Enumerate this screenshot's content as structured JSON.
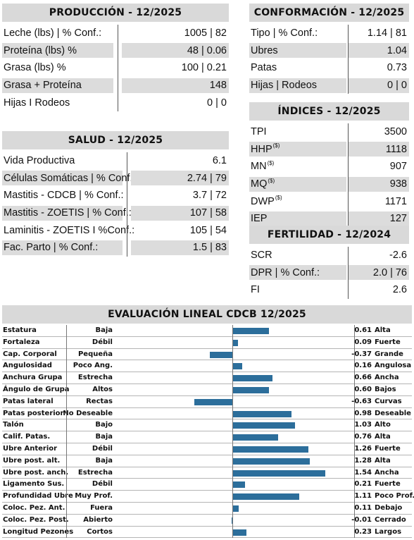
{
  "produccion": {
    "title": "PRODUCCIÓN - 12/2025",
    "rows": [
      {
        "label": "Leche (lbs) | % Conf.:",
        "value": "1005 | 82"
      },
      {
        "label": "Proteína (lbs) %",
        "value": "48 | 0.06"
      },
      {
        "label": "Grasa (lbs) %",
        "value": "100 | 0.21"
      },
      {
        "label": "Grasa + Proteína",
        "value": "148"
      },
      {
        "label": "Hijas I Rodeos",
        "value": "0 | 0"
      }
    ]
  },
  "salud": {
    "title": "SALUD - 12/2025",
    "rows": [
      {
        "label": "Vida Productiva",
        "value": "6.1"
      },
      {
        "label": "Células Somáticas | % Conf.:",
        "value": "2.74 | 79"
      },
      {
        "label": "Mastitis - CDCB | % Conf.:",
        "value": "3.7 | 72"
      },
      {
        "label": "Mastitis - ZOETIS | % Conf.:",
        "value": "107 | 58"
      },
      {
        "label": "Laminitis - ZOETIS I %Conf.:",
        "value": "105  | 54"
      },
      {
        "label": "Fac. Parto | % Conf.:",
        "value": "1.5  | 83"
      }
    ]
  },
  "conformacion": {
    "title": "CONFORMACIÓN - 12/2025",
    "rows": [
      {
        "label": "Tipo | % Conf.:",
        "value": "1.14 | 81"
      },
      {
        "label": "Ubres",
        "value": "1.04"
      },
      {
        "label": "Patas",
        "value": "0.73"
      },
      {
        "label": "Hijas | Rodeos",
        "value": "0 | 0"
      }
    ]
  },
  "indices": {
    "title": "ÍNDICES - 12/2025",
    "rows": [
      {
        "label": "TPI",
        "sup": "",
        "value": "3500"
      },
      {
        "label": "HHP",
        "sup": "($)",
        "value": "1118"
      },
      {
        "label": "MN",
        "sup": "($)",
        "value": "907"
      },
      {
        "label": "MQ",
        "sup": "($)",
        "value": "938"
      },
      {
        "label": "DWP",
        "sup": "($)",
        "value": "1171"
      },
      {
        "label": "IEP",
        "sup": "",
        "value": "127"
      }
    ]
  },
  "fertilidad": {
    "title": "FERTILIDAD - 12/2024",
    "rows": [
      {
        "label": "SCR",
        "value": "-2.6"
      },
      {
        "label": "DPR | % Conf.:",
        "value": "2.0 | 76"
      },
      {
        "label": "FI",
        "value": "2.6"
      }
    ]
  },
  "lineal": {
    "title": "EVALUACIÓN LINEAL CDCB 12/2025",
    "bar_color": "#2c6e9b",
    "traits": [
      {
        "trait": "Estatura",
        "low": "Baja",
        "value": 0.61,
        "value_text": "0.61",
        "high": "Alta"
      },
      {
        "trait": "Fortaleza",
        "low": "Débil",
        "value": 0.09,
        "value_text": "0.09",
        "high": "Fuerte"
      },
      {
        "trait": "Cap. Corporal",
        "low": "Pequeña",
        "value": -0.37,
        "value_text": "-0.37",
        "high": "Grande"
      },
      {
        "trait": "Angulosidad",
        "low": "Poco Ang.",
        "value": 0.16,
        "value_text": "0.16",
        "high": "Angulosa"
      },
      {
        "trait": "Anchura Grupa",
        "low": "Estrecha",
        "value": 0.66,
        "value_text": "0.66",
        "high": "Ancha"
      },
      {
        "trait": "Ángulo de Grupa",
        "low": "Altos",
        "value": 0.6,
        "value_text": "0.60",
        "high": "Bajos"
      },
      {
        "trait": "Patas lateral",
        "low": "Rectas",
        "value": -0.63,
        "value_text": "-0.63",
        "high": "Curvas"
      },
      {
        "trait": "Patas posterior",
        "low": "No Deseable",
        "value": 0.98,
        "value_text": "0.98",
        "high": "Deseable"
      },
      {
        "trait": "Talón",
        "low": "Bajo",
        "value": 1.03,
        "value_text": "1.03",
        "high": "Alto"
      },
      {
        "trait": "Calif. Patas.",
        "low": "Baja",
        "value": 0.76,
        "value_text": "0.76",
        "high": "Alta"
      },
      {
        "trait": "Ubre Anterior",
        "low": "Débil",
        "value": 1.26,
        "value_text": "1.26",
        "high": "Fuerte"
      },
      {
        "trait": "Ubre post. alt.",
        "low": "Baja",
        "value": 1.28,
        "value_text": "1.28",
        "high": "Alta"
      },
      {
        "trait": "Ubre post. anch.",
        "low": "Estrecha",
        "value": 1.54,
        "value_text": "1.54",
        "high": "Ancha"
      },
      {
        "trait": "Ligamento Sus.",
        "low": "Débil",
        "value": 0.21,
        "value_text": "0.21",
        "high": "Fuerte"
      },
      {
        "trait": "Profundidad Ubre",
        "low": "Muy Prof.",
        "value": 1.11,
        "value_text": "1.11",
        "high": "Poco Prof."
      },
      {
        "trait": "Coloc. Pez. Ant.",
        "low": "Fuera",
        "value": 0.11,
        "value_text": "0.11",
        "high": "Debajo"
      },
      {
        "trait": "Coloc. Pez. Post.",
        "low": "Abierto",
        "value": -0.01,
        "value_text": "-0.01",
        "high": "Cerrado"
      },
      {
        "trait": "Longitud Pezones",
        "low": "Cortos",
        "value": 0.23,
        "value_text": "0.23",
        "high": "Largos"
      }
    ]
  }
}
